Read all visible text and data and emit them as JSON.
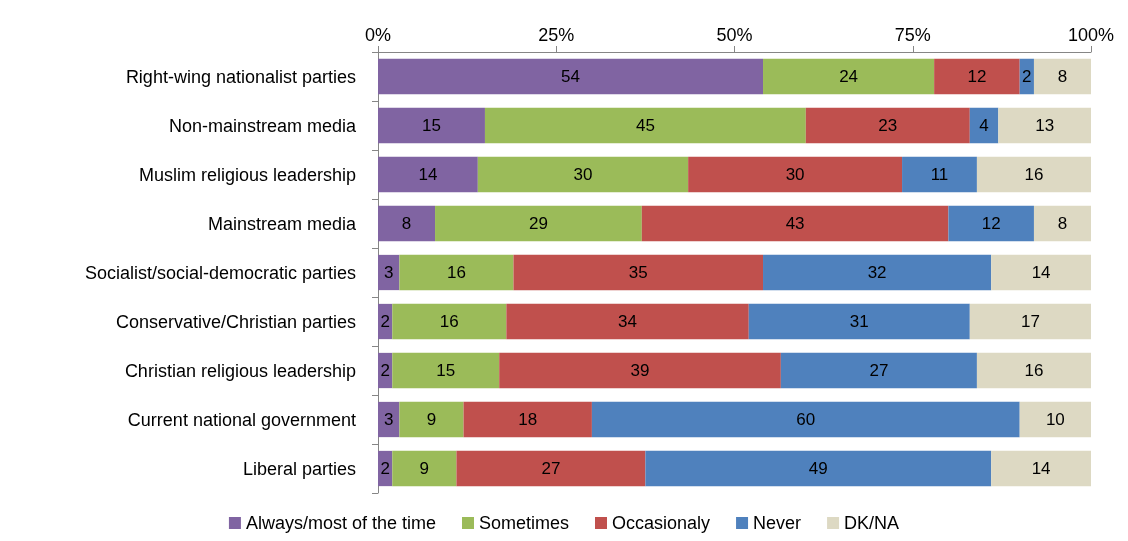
{
  "chart_data": {
    "type": "bar",
    "orientation": "horizontal",
    "stacked": true,
    "grid": false,
    "legend": "bottom",
    "categories": [
      "Right-wing nationalist parties",
      "Non-mainstream media",
      "Muslim religious leadership",
      "Mainstream media",
      "Socialist/social-democratic parties",
      "Conservative/Christian parties",
      "Christian religious leadership",
      "Current national government",
      "Liberal parties"
    ],
    "xlim": [
      0,
      100
    ],
    "xticks": [
      {
        "value": 0,
        "label": "0%"
      },
      {
        "value": 25,
        "label": "25%"
      },
      {
        "value": 50,
        "label": "50%"
      },
      {
        "value": 75,
        "label": "75%"
      },
      {
        "value": 100,
        "label": "100%"
      }
    ],
    "series": [
      {
        "name": "Always/most of the time",
        "color": "#8064a2",
        "values": [
          54,
          15,
          14,
          8,
          3,
          2,
          2,
          3,
          2
        ],
        "value_labels": [
          "54",
          "15",
          "14",
          "8",
          "3",
          "2",
          "2",
          "3",
          "2"
        ]
      },
      {
        "name": "Sometimes",
        "color": "#9bbb59",
        "values": [
          24,
          45,
          29.5,
          29,
          16,
          16,
          15,
          9,
          9
        ],
        "value_labels": [
          "24",
          "45",
          "30",
          "29",
          "16",
          "16",
          "15",
          "9",
          "9"
        ]
      },
      {
        "name": "Occasionaly",
        "color": "#c0504d",
        "values": [
          12,
          23,
          30,
          43,
          35,
          34,
          39.5,
          18,
          26.5
        ],
        "value_labels": [
          "12",
          "23",
          "30",
          "43",
          "35",
          "34",
          "39",
          "18",
          "27"
        ]
      },
      {
        "name": "Never",
        "color": "#4f81bd",
        "values": [
          2,
          4,
          10.5,
          12,
          32,
          31,
          27.5,
          60,
          48.5
        ],
        "value_labels": [
          "2",
          "4",
          "11",
          "12",
          "32",
          "31",
          "27",
          "60",
          "49"
        ]
      },
      {
        "name": "DK/NA",
        "color": "#ddd9c3",
        "values": [
          8,
          13,
          16,
          8,
          14,
          17,
          16,
          10,
          14
        ],
        "value_labels": [
          "8",
          "13",
          "16",
          "8",
          "14",
          "17",
          "16",
          "10",
          "14"
        ]
      }
    ]
  }
}
